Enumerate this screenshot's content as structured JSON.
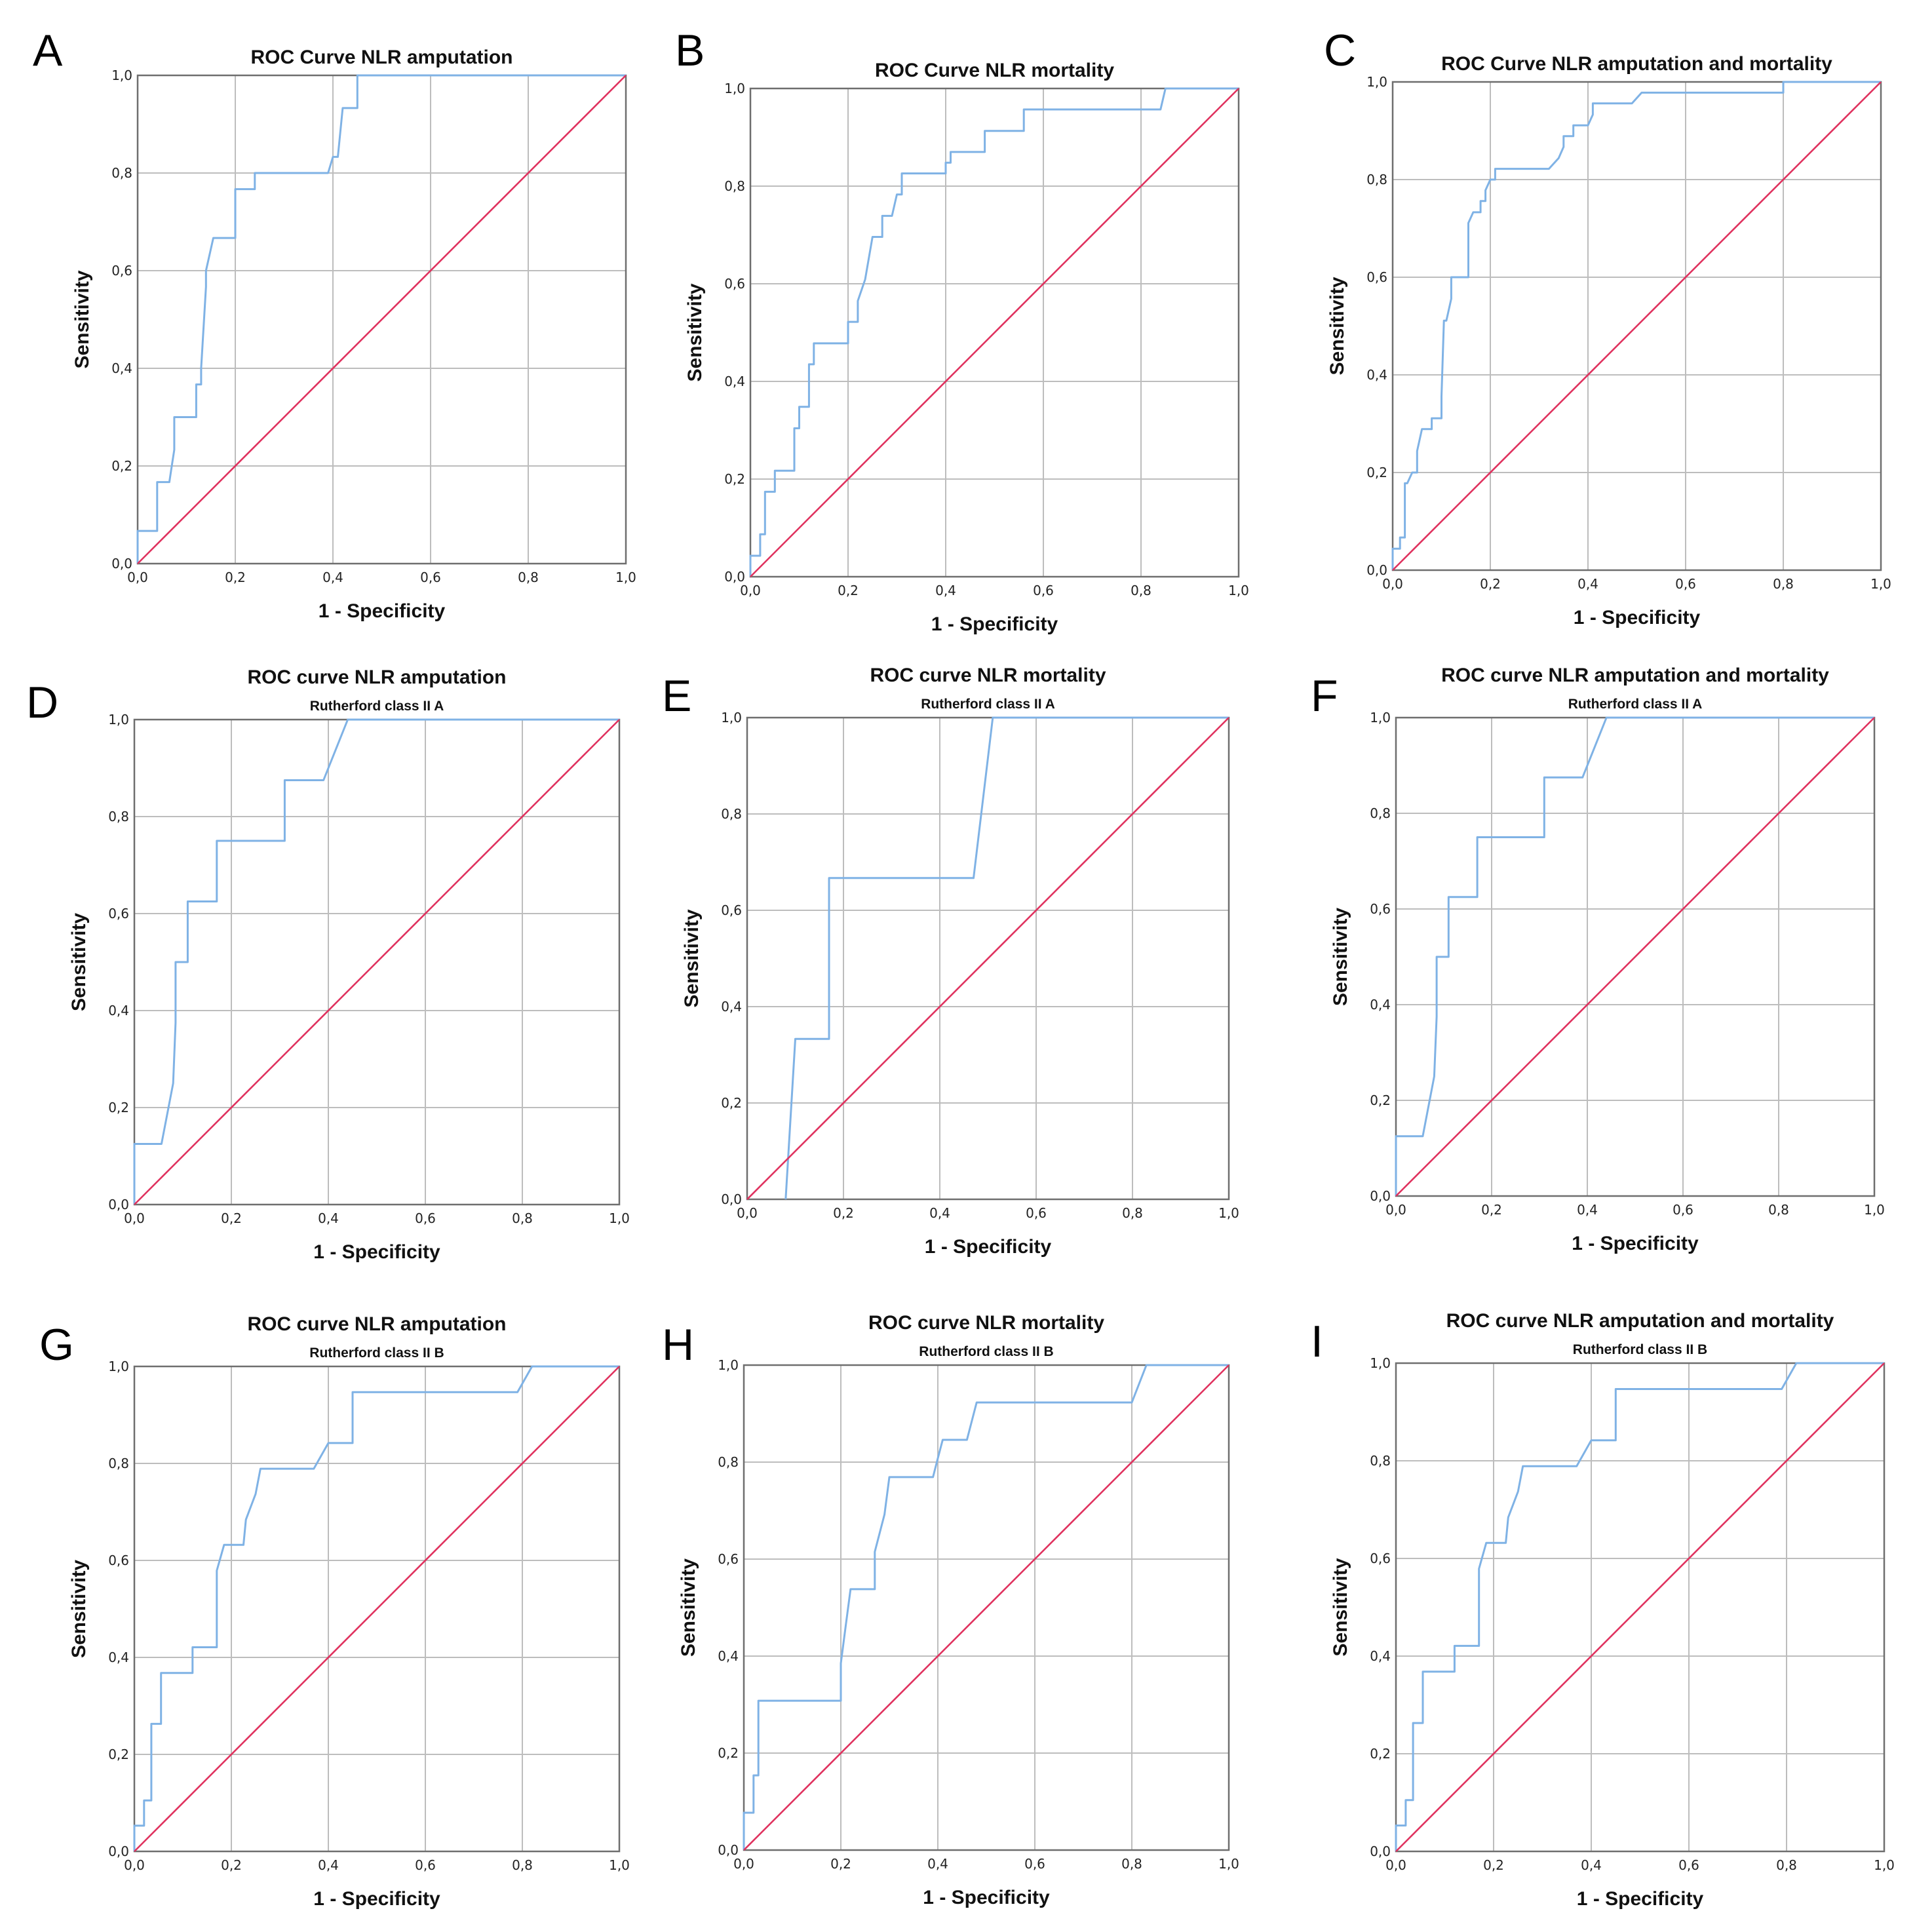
{
  "figure_colors": {
    "roc_curve": "#7fb2e5",
    "reference_line": "#e0335f",
    "grid": "#bdbdbd"
  },
  "chart_data": [
    {
      "panel_label": "A",
      "type": "line",
      "title": "ROC Curve NLR amputation",
      "subtitle": "",
      "xlabel": "1 - Specificity",
      "ylabel": "Sensitivity",
      "xlim": [
        0,
        1
      ],
      "ylim": [
        0,
        1
      ],
      "x_ticks": [
        "0,0",
        "0,2",
        "0,4",
        "0,6",
        "0,8",
        "1,0"
      ],
      "y_ticks": [
        "0,0",
        "0,2",
        "0,4",
        "0,6",
        "0,8",
        "1,0"
      ],
      "grid": true,
      "series": [
        {
          "name": "ROC curve",
          "x": [
            0,
            0,
            0.04,
            0.04,
            0.065,
            0.07,
            0.075,
            0.075,
            0.12,
            0.12,
            0.13,
            0.13,
            0.14,
            0.14,
            0.155,
            0.155,
            0.2,
            0.2,
            0.24,
            0.24,
            0.39,
            0.4,
            0.41,
            0.42,
            0.45,
            0.45,
            1
          ],
          "y": [
            0,
            0.067,
            0.067,
            0.167,
            0.167,
            0.2,
            0.233,
            0.3,
            0.3,
            0.367,
            0.367,
            0.4,
            0.567,
            0.6,
            0.667,
            0.667,
            0.667,
            0.767,
            0.767,
            0.8,
            0.8,
            0.833,
            0.833,
            0.933,
            0.933,
            1,
            1
          ]
        },
        {
          "name": "Reference line",
          "x": [
            0,
            1
          ],
          "y": [
            0,
            1
          ]
        }
      ]
    },
    {
      "panel_label": "B",
      "type": "line",
      "title": "ROC Curve NLR mortality",
      "subtitle": "",
      "xlabel": "1 - Specificity",
      "ylabel": "Sensitivity",
      "xlim": [
        0,
        1
      ],
      "ylim": [
        0,
        1
      ],
      "x_ticks": [
        "0,0",
        "0,2",
        "0,4",
        "0,6",
        "0,8",
        "1,0"
      ],
      "y_ticks": [
        "0,0",
        "0,2",
        "0,4",
        "0,6",
        "0,8",
        "1,0"
      ],
      "grid": true,
      "series": [
        {
          "name": "ROC curve",
          "x": [
            0,
            0,
            0.02,
            0.02,
            0.03,
            0.03,
            0.05,
            0.05,
            0.09,
            0.09,
            0.1,
            0.1,
            0.12,
            0.12,
            0.13,
            0.13,
            0.2,
            0.2,
            0.22,
            0.22,
            0.235,
            0.25,
            0.27,
            0.27,
            0.29,
            0.3,
            0.31,
            0.31,
            0.4,
            0.4,
            0.41,
            0.41,
            0.48,
            0.48,
            0.56,
            0.56,
            0.6,
            0.6,
            0.84,
            0.85,
            1
          ],
          "y": [
            0,
            0.043,
            0.043,
            0.087,
            0.087,
            0.174,
            0.174,
            0.217,
            0.217,
            0.304,
            0.304,
            0.348,
            0.348,
            0.435,
            0.435,
            0.478,
            0.478,
            0.522,
            0.522,
            0.565,
            0.609,
            0.696,
            0.696,
            0.739,
            0.739,
            0.783,
            0.783,
            0.826,
            0.826,
            0.848,
            0.848,
            0.87,
            0.87,
            0.913,
            0.913,
            0.957,
            0.957,
            0.957,
            0.957,
            1,
            1
          ]
        },
        {
          "name": "Reference line",
          "x": [
            0,
            1
          ],
          "y": [
            0,
            1
          ]
        }
      ]
    },
    {
      "panel_label": "C",
      "type": "line",
      "title": "ROC Curve NLR amputation and mortality",
      "subtitle": "",
      "xlabel": "1 - Specificity",
      "ylabel": "Sensitivity",
      "xlim": [
        0,
        1
      ],
      "ylim": [
        0,
        1
      ],
      "x_ticks": [
        "0,0",
        "0,2",
        "0,4",
        "0,6",
        "0,8",
        "1,0"
      ],
      "y_ticks": [
        "0,0",
        "0,2",
        "0,4",
        "0,6",
        "0,8",
        "1,0"
      ],
      "grid": true,
      "series": [
        {
          "name": "ROC curve",
          "x": [
            0,
            0,
            0.015,
            0.015,
            0.025,
            0.025,
            0.03,
            0.04,
            0.05,
            0.05,
            0.06,
            0.08,
            0.08,
            0.1,
            0.1,
            0.105,
            0.11,
            0.12,
            0.12,
            0.14,
            0.155,
            0.155,
            0.165,
            0.18,
            0.18,
            0.19,
            0.19,
            0.2,
            0.21,
            0.21,
            0.32,
            0.34,
            0.35,
            0.35,
            0.37,
            0.37,
            0.4,
            0.41,
            0.41,
            0.49,
            0.51,
            0.51,
            0.8,
            0.8,
            0.81,
            1
          ],
          "y": [
            0,
            0.044,
            0.044,
            0.067,
            0.067,
            0.178,
            0.178,
            0.2,
            0.2,
            0.244,
            0.289,
            0.289,
            0.311,
            0.311,
            0.356,
            0.511,
            0.511,
            0.556,
            0.6,
            0.6,
            0.6,
            0.711,
            0.733,
            0.733,
            0.756,
            0.756,
            0.778,
            0.8,
            0.8,
            0.822,
            0.822,
            0.844,
            0.867,
            0.889,
            0.889,
            0.911,
            0.911,
            0.933,
            0.956,
            0.956,
            0.978,
            0.978,
            0.978,
            1,
            1,
            1
          ]
        },
        {
          "name": "Reference line",
          "x": [
            0,
            1
          ],
          "y": [
            0,
            1
          ]
        }
      ]
    },
    {
      "panel_label": "D",
      "type": "line",
      "title": "ROC curve NLR amputation",
      "subtitle": "Rutherford class II A",
      "xlabel": "1 - Specificity",
      "ylabel": "Sensitivity",
      "xlim": [
        0,
        1
      ],
      "ylim": [
        0,
        1
      ],
      "x_ticks": [
        "0,0",
        "0,2",
        "0,4",
        "0,6",
        "0,8",
        "1,0"
      ],
      "y_ticks": [
        "0,0",
        "0,2",
        "0,4",
        "0,6",
        "0,8",
        "1,0"
      ],
      "grid": true,
      "series": [
        {
          "name": "ROC curve",
          "x": [
            0,
            0,
            0.056,
            0.08,
            0.085,
            0.085,
            0.11,
            0.11,
            0.17,
            0.17,
            0.31,
            0.31,
            0.39,
            0.44,
            1
          ],
          "y": [
            0,
            0.125,
            0.125,
            0.25,
            0.375,
            0.5,
            0.5,
            0.625,
            0.625,
            0.75,
            0.75,
            0.875,
            0.875,
            1,
            1
          ]
        },
        {
          "name": "Reference line",
          "x": [
            0,
            1
          ],
          "y": [
            0,
            1
          ]
        }
      ]
    },
    {
      "panel_label": "E",
      "type": "line",
      "title": "ROC curve NLR mortality",
      "subtitle": "Rutherford class II A",
      "xlabel": "1 - Specificity",
      "ylabel": "Sensitivity",
      "xlim": [
        0,
        1
      ],
      "ylim": [
        0,
        1
      ],
      "x_ticks": [
        "0,0",
        "0,2",
        "0,4",
        "0,6",
        "0,8",
        "1,0"
      ],
      "y_ticks": [
        "0,0",
        "0,2",
        "0,4",
        "0,6",
        "0,8",
        "1,0"
      ],
      "grid": true,
      "series": [
        {
          "name": "ROC curve",
          "x": [
            0.08,
            0.1,
            0.17,
            0.17,
            0.47,
            0.51,
            1
          ],
          "y": [
            0,
            0.333,
            0.333,
            0.667,
            0.667,
            1,
            1
          ]
        },
        {
          "name": "Reference line",
          "x": [
            0,
            1
          ],
          "y": [
            0,
            1
          ]
        }
      ]
    },
    {
      "panel_label": "F",
      "type": "line",
      "title": "ROC curve NLR amputation and mortality",
      "subtitle": "Rutherford class II A",
      "xlabel": "1 - Specificity",
      "ylabel": "Sensitivity",
      "xlim": [
        0,
        1
      ],
      "ylim": [
        0,
        1
      ],
      "x_ticks": [
        "0,0",
        "0,2",
        "0,4",
        "0,6",
        "0,8",
        "1,0"
      ],
      "y_ticks": [
        "0,0",
        "0,2",
        "0,4",
        "0,6",
        "0,8",
        "1,0"
      ],
      "grid": true,
      "series": [
        {
          "name": "ROC curve",
          "x": [
            0,
            0,
            0.056,
            0.08,
            0.085,
            0.085,
            0.11,
            0.11,
            0.17,
            0.17,
            0.31,
            0.31,
            0.39,
            0.44,
            1
          ],
          "y": [
            0,
            0.125,
            0.125,
            0.25,
            0.375,
            0.5,
            0.5,
            0.625,
            0.625,
            0.75,
            0.75,
            0.875,
            0.875,
            1,
            1
          ]
        },
        {
          "name": "Reference line",
          "x": [
            0,
            1
          ],
          "y": [
            0,
            1
          ]
        }
      ]
    },
    {
      "panel_label": "G",
      "type": "line",
      "title": "ROC curve NLR amputation",
      "subtitle": "Rutherford class II B",
      "xlabel": "1 - Specificity",
      "ylabel": "Sensitivity",
      "xlim": [
        0,
        1
      ],
      "ylim": [
        0,
        1
      ],
      "x_ticks": [
        "0,0",
        "0,2",
        "0,4",
        "0,6",
        "0,8",
        "1,0"
      ],
      "y_ticks": [
        "0,0",
        "0,2",
        "0,4",
        "0,6",
        "0,8",
        "1,0"
      ],
      "grid": true,
      "series": [
        {
          "name": "ROC curve",
          "x": [
            0,
            0,
            0.02,
            0.02,
            0.035,
            0.035,
            0.055,
            0.055,
            0.12,
            0.12,
            0.17,
            0.17,
            0.185,
            0.185,
            0.225,
            0.23,
            0.25,
            0.26,
            0.37,
            0.4,
            0.4,
            0.45,
            0.45,
            0.79,
            0.82,
            1
          ],
          "y": [
            0,
            0.053,
            0.053,
            0.105,
            0.105,
            0.263,
            0.263,
            0.368,
            0.368,
            0.421,
            0.421,
            0.579,
            0.632,
            0.632,
            0.632,
            0.684,
            0.737,
            0.789,
            0.789,
            0.842,
            0.842,
            0.842,
            0.947,
            0.947,
            1,
            1
          ]
        },
        {
          "name": "Reference line",
          "x": [
            0,
            1
          ],
          "y": [
            0,
            1
          ]
        }
      ]
    },
    {
      "panel_label": "H",
      "type": "line",
      "title": "ROC curve NLR mortality",
      "subtitle": "Rutherford class II B",
      "xlabel": "1 - Specificity",
      "ylabel": "Sensitivity",
      "xlim": [
        0,
        1
      ],
      "ylim": [
        0,
        1
      ],
      "x_ticks": [
        "0,0",
        "0,2",
        "0,4",
        "0,6",
        "0,8",
        "1,0"
      ],
      "y_ticks": [
        "0,0",
        "0,2",
        "0,4",
        "0,6",
        "0,8",
        "1,0"
      ],
      "grid": true,
      "series": [
        {
          "name": "ROC curve",
          "x": [
            0,
            0,
            0.02,
            0.02,
            0.03,
            0.03,
            0.2,
            0.2,
            0.21,
            0.22,
            0.27,
            0.27,
            0.29,
            0.3,
            0.39,
            0.4,
            0.41,
            0.41,
            0.46,
            0.48,
            0.8,
            0.83,
            1
          ],
          "y": [
            0,
            0.077,
            0.077,
            0.154,
            0.154,
            0.308,
            0.308,
            0.385,
            0.462,
            0.538,
            0.538,
            0.615,
            0.692,
            0.769,
            0.769,
            0.808,
            0.846,
            0.846,
            0.846,
            0.923,
            0.923,
            1,
            1
          ]
        },
        {
          "name": "Reference line",
          "x": [
            0,
            1
          ],
          "y": [
            0,
            1
          ]
        }
      ]
    },
    {
      "panel_label": "I",
      "type": "line",
      "title": "ROC curve NLR amputation and mortality",
      "subtitle": "Rutherford class II B",
      "xlabel": "1 - Specificity",
      "ylabel": "Sensitivity",
      "xlim": [
        0,
        1
      ],
      "ylim": [
        0,
        1
      ],
      "x_ticks": [
        "0,0",
        "0,2",
        "0,4",
        "0,6",
        "0,8",
        "1,0"
      ],
      "y_ticks": [
        "0,0",
        "0,2",
        "0,4",
        "0,6",
        "0,8",
        "1,0"
      ],
      "grid": true,
      "series": [
        {
          "name": "ROC curve",
          "x": [
            0,
            0,
            0.02,
            0.02,
            0.035,
            0.035,
            0.055,
            0.055,
            0.12,
            0.12,
            0.17,
            0.17,
            0.185,
            0.185,
            0.225,
            0.23,
            0.25,
            0.26,
            0.37,
            0.4,
            0.4,
            0.45,
            0.45,
            0.79,
            0.82,
            1
          ],
          "y": [
            0,
            0.053,
            0.053,
            0.105,
            0.105,
            0.263,
            0.263,
            0.368,
            0.368,
            0.421,
            0.421,
            0.579,
            0.632,
            0.632,
            0.632,
            0.684,
            0.737,
            0.789,
            0.789,
            0.842,
            0.842,
            0.842,
            0.947,
            0.947,
            1,
            1
          ]
        },
        {
          "name": "Reference line",
          "x": [
            0,
            1
          ],
          "y": [
            0,
            1
          ]
        }
      ]
    }
  ]
}
